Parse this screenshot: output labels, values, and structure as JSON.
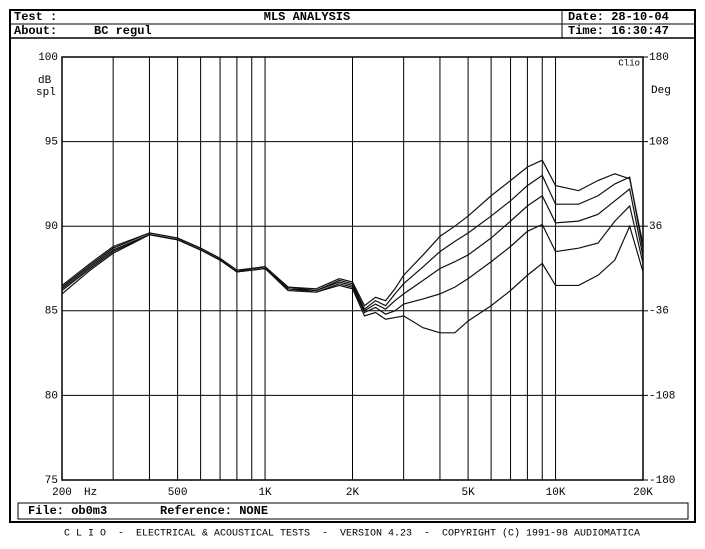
{
  "header": {
    "test_label": "Test :",
    "title": "MLS ANALYSIS",
    "date": "Date: 28-10-04",
    "about_label": "About:",
    "about": "BC regul",
    "time": "Time: 16:30:47"
  },
  "chart_data": {
    "type": "line",
    "y_label_top": "dB",
    "y_label_bottom": "spl",
    "y2_label": "Deg",
    "x_label": "Hz",
    "brand": "Clio",
    "log_x": true,
    "grid": true,
    "x": [
      200,
      250,
      300,
      400,
      500,
      600,
      700,
      800,
      900,
      1000,
      1200,
      1500,
      1800,
      2000,
      2200,
      2400,
      2600,
      2800,
      3000,
      3500,
      4000,
      4500,
      5000,
      6000,
      7000,
      8000,
      9000,
      10000,
      12000,
      14000,
      16000,
      18000,
      20000
    ],
    "xlim": [
      200,
      20000
    ],
    "xticks": [
      200,
      500,
      {
        "value": 1000,
        "label": "1K"
      },
      {
        "value": 2000,
        "label": "2K"
      },
      {
        "value": 5000,
        "label": "5K"
      },
      {
        "value": 10000,
        "label": "10K"
      },
      {
        "value": 20000,
        "label": "20K"
      }
    ],
    "xgrid": [
      300,
      400,
      600,
      700,
      800,
      900,
      3000,
      4000,
      6000,
      7000,
      8000,
      9000
    ],
    "ylim": [
      75,
      100
    ],
    "yticks": [
      75,
      80,
      85,
      90,
      95,
      100
    ],
    "y2lim": [
      -180,
      180
    ],
    "y2ticks": [
      -180,
      -108,
      -36,
      36,
      108,
      180
    ],
    "series": [
      {
        "color": "#111111",
        "values": [
          86.5,
          87.8,
          88.8,
          89.6,
          89.3,
          88.7,
          88.1,
          87.4,
          87.5,
          87.6,
          86.4,
          86.3,
          86.9,
          86.7,
          85.3,
          85.8,
          85.6,
          86.3,
          87.1,
          88.3,
          89.4,
          90.0,
          90.6,
          91.8,
          92.7,
          93.5,
          93.9,
          92.4,
          92.1,
          92.7,
          93.1,
          92.8,
          88.9
        ]
      },
      {
        "color": "#111111",
        "values": [
          86.4,
          87.7,
          88.7,
          89.6,
          89.3,
          88.7,
          88.1,
          87.4,
          87.5,
          87.6,
          86.4,
          86.2,
          86.8,
          86.6,
          85.1,
          85.6,
          85.3,
          86.0,
          86.6,
          87.6,
          88.5,
          89.1,
          89.6,
          90.6,
          91.5,
          92.4,
          93.0,
          91.3,
          91.3,
          91.8,
          92.5,
          92.9,
          88.6
        ]
      },
      {
        "color": "#111111",
        "values": [
          86.3,
          87.6,
          88.6,
          89.5,
          89.2,
          88.6,
          88.0,
          87.3,
          87.5,
          87.6,
          86.3,
          86.2,
          86.7,
          86.5,
          85.0,
          85.4,
          85.1,
          85.6,
          86.0,
          86.8,
          87.5,
          87.9,
          88.3,
          89.3,
          90.3,
          91.2,
          91.8,
          90.2,
          90.3,
          90.7,
          91.5,
          92.2,
          88.2
        ]
      },
      {
        "color": "#111111",
        "values": [
          86.2,
          87.5,
          88.5,
          89.5,
          89.2,
          88.6,
          88.0,
          87.3,
          87.4,
          87.5,
          86.3,
          86.1,
          86.6,
          86.4,
          84.9,
          85.2,
          84.8,
          85.0,
          85.4,
          85.7,
          86.0,
          86.4,
          86.9,
          87.9,
          88.8,
          89.7,
          90.1,
          88.5,
          88.7,
          89.0,
          90.3,
          91.2,
          87.8
        ]
      },
      {
        "color": "#111111",
        "values": [
          86.0,
          87.4,
          88.4,
          89.5,
          89.2,
          88.6,
          88.0,
          87.3,
          87.4,
          87.5,
          86.2,
          86.1,
          86.5,
          86.3,
          84.7,
          84.9,
          84.5,
          84.6,
          84.7,
          84.0,
          83.7,
          83.7,
          84.4,
          85.3,
          86.2,
          87.1,
          87.8,
          86.5,
          86.5,
          87.1,
          88.0,
          90.0,
          87.3
        ]
      }
    ]
  },
  "footer": {
    "file": "File: ob0m3",
    "reference": "Reference: NONE",
    "status": "C L I O  -  ELECTRICAL & ACOUSTICAL TESTS  -  VERSION 4.23  -  COPYRIGHT (C) 1991-98 AUDIOMATICA"
  }
}
